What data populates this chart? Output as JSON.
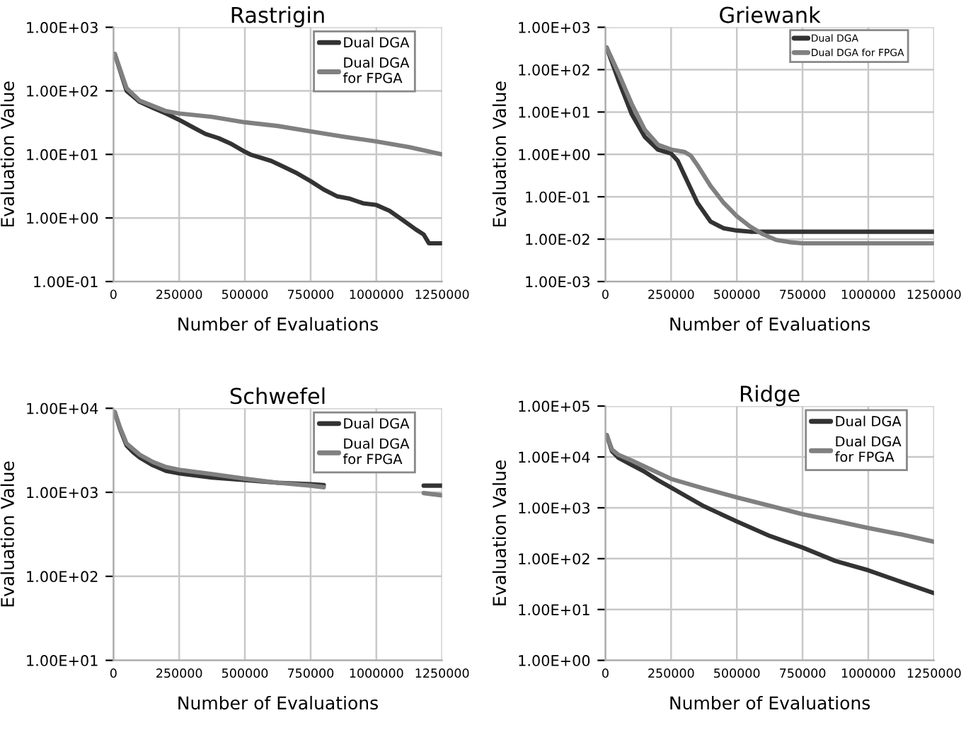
{
  "chart_data": [
    {
      "type": "line",
      "title": "Rastrigin",
      "xlabel": "Number of Evaluations",
      "ylabel": "Evaluation Value",
      "log": "y",
      "grid": true,
      "legend": "top right",
      "xlim": [
        0,
        1250000
      ],
      "xticks": [
        0,
        250000,
        500000,
        750000,
        1000000,
        1250000
      ],
      "ylim": [
        0.1,
        1000
      ],
      "yticks": [
        {
          "value": 0.1,
          "label": "1.00E-01"
        },
        {
          "value": 1,
          "label": "1.00E+00"
        },
        {
          "value": 10,
          "label": "1.00E+01"
        },
        {
          "value": 100,
          "label": "1.00E+02"
        },
        {
          "value": 1000,
          "label": "1.00E+03"
        }
      ],
      "series": [
        {
          "name": "Dual DGA",
          "color": "#333333",
          "x": [
            5000,
            50000,
            100000,
            150000,
            200000,
            250000,
            300000,
            350000,
            400000,
            450000,
            500000,
            520000,
            600000,
            650000,
            700000,
            750000,
            800000,
            850000,
            900000,
            950000,
            1000000,
            1050000,
            1100000,
            1150000,
            1180000,
            1200000,
            1250000
          ],
          "values": [
            380,
            100,
            67,
            54,
            44,
            35,
            27,
            21,
            18,
            14.5,
            11,
            10,
            7.9,
            6.3,
            5,
            3.8,
            2.8,
            2.2,
            2.0,
            1.7,
            1.6,
            1.3,
            0.93,
            0.66,
            0.55,
            0.4,
            0.4
          ]
        },
        {
          "name": "Dual DGA\nfor FPGA",
          "color": "#808080",
          "x": [
            5000,
            50000,
            100000,
            200000,
            250000,
            375000,
            500000,
            625000,
            750000,
            875000,
            1000000,
            1125000,
            1250000
          ],
          "values": [
            380,
            110,
            70,
            48,
            44,
            39,
            32,
            28,
            23,
            19,
            16,
            13,
            10
          ]
        }
      ]
    },
    {
      "type": "line",
      "title": "Griewank",
      "xlabel": "Number of Evaluations",
      "ylabel": "Evaluation Value",
      "log": "y",
      "grid": true,
      "legend": "top right",
      "xlim": [
        0,
        1250000
      ],
      "xticks": [
        0,
        250000,
        500000,
        750000,
        1000000,
        1250000
      ],
      "ylim": [
        0.001,
        1000
      ],
      "yticks": [
        {
          "value": 0.001,
          "label": "1.00E-03"
        },
        {
          "value": 0.01,
          "label": "1.00E-02"
        },
        {
          "value": 0.1,
          "label": "1.00E-01"
        },
        {
          "value": 1,
          "label": "1.00E+00"
        },
        {
          "value": 10,
          "label": "1.00E+01"
        },
        {
          "value": 100,
          "label": "1.00E+02"
        },
        {
          "value": 1000,
          "label": "1.00E+03"
        }
      ],
      "series": [
        {
          "name": "Dual DGA",
          "color": "#333333",
          "x": [
            5000,
            50000,
            100000,
            150000,
            200000,
            250000,
            275000,
            300000,
            350000,
            400000,
            450000,
            500000,
            550000,
            1250000
          ],
          "values": [
            330,
            56,
            9,
            2.6,
            1.3,
            1.05,
            0.71,
            0.33,
            0.072,
            0.026,
            0.018,
            0.016,
            0.015,
            0.015
          ]
        },
        {
          "name": "Dual DGA for FPGA",
          "color": "#808080",
          "x": [
            5000,
            50000,
            100000,
            150000,
            200000,
            250000,
            300000,
            325000,
            350000,
            400000,
            450000,
            500000,
            550000,
            600000,
            650000,
            700000,
            750000,
            1250000
          ],
          "values": [
            330,
            82,
            15.6,
            3.8,
            1.7,
            1.3,
            1.15,
            0.93,
            0.56,
            0.18,
            0.072,
            0.035,
            0.02,
            0.013,
            0.0096,
            0.0085,
            0.008,
            0.008
          ]
        }
      ]
    },
    {
      "type": "line",
      "title": "Schwefel",
      "xlabel": "Number of Evaluations",
      "ylabel": "Evaluation Value",
      "log": "y",
      "grid": true,
      "legend": "top right",
      "xlim": [
        0,
        1250000
      ],
      "xticks": [
        0,
        250000,
        500000,
        750000,
        1000000,
        1250000
      ],
      "ylim": [
        10,
        10000
      ],
      "yticks": [
        {
          "value": 10,
          "label": "1.00E+01"
        },
        {
          "value": 100,
          "label": "1.00E+02"
        },
        {
          "value": 1000,
          "label": "1.00E+03"
        },
        {
          "value": 10000,
          "label": "1.00E+04"
        }
      ],
      "series": [
        {
          "name": "Dual DGA",
          "color": "#333333",
          "x": [
            5000,
            25000,
            50000,
            75000,
            100000,
            150000,
            200000,
            250000,
            375000,
            500000,
            625000,
            750000,
            800000,
            1000000,
            1180000,
            1250000
          ],
          "values": [
            9000,
            5700,
            3600,
            3000,
            2600,
            2100,
            1800,
            1680,
            1500,
            1400,
            1300,
            1250,
            1220,
            null,
            1200,
            1200
          ]
        },
        {
          "name": "Dual DGA\nfor FPGA",
          "color": "#808080",
          "x": [
            5000,
            25000,
            50000,
            100000,
            150000,
            200000,
            250000,
            375000,
            500000,
            625000,
            750000,
            800000,
            1000000,
            1180000,
            1250000
          ],
          "values": [
            9000,
            5900,
            3800,
            2800,
            2300,
            2000,
            1850,
            1650,
            1450,
            1300,
            1200,
            1150,
            null,
            980,
            920
          ]
        }
      ]
    },
    {
      "type": "line",
      "title": "Ridge",
      "xlabel": "Number of Evaluations",
      "ylabel": "Evaluation Value",
      "log": "y",
      "grid": true,
      "legend": "top right",
      "xlim": [
        0,
        1250000
      ],
      "xticks": [
        0,
        250000,
        500000,
        750000,
        1000000,
        1250000
      ],
      "ylim": [
        1,
        100000
      ],
      "yticks": [
        {
          "value": 1,
          "label": "1.00E+00"
        },
        {
          "value": 10,
          "label": "1.00E+01"
        },
        {
          "value": 100,
          "label": "1.00E+02"
        },
        {
          "value": 1000,
          "label": "1.00E+03"
        },
        {
          "value": 10000,
          "label": "1.00E+04"
        },
        {
          "value": 100000,
          "label": "1.00E+05"
        }
      ],
      "series": [
        {
          "name": "Dual DGA",
          "color": "#333333",
          "x": [
            5000,
            25000,
            50000,
            100000,
            150000,
            200000,
            250000,
            375000,
            500000,
            625000,
            750000,
            875000,
            1000000,
            1125000,
            1250000
          ],
          "values": [
            27000,
            13000,
            9600,
            7000,
            5100,
            3500,
            2500,
            1070,
            540,
            280,
            165,
            90,
            59,
            35,
            21
          ]
        },
        {
          "name": "Dual DGA\nfor FPGA",
          "color": "#808080",
          "x": [
            5000,
            25000,
            50000,
            100000,
            250000,
            375000,
            500000,
            625000,
            750000,
            875000,
            1000000,
            1125000,
            1250000
          ],
          "values": [
            27000,
            14000,
            11000,
            8500,
            3700,
            2400,
            1600,
            1100,
            750,
            550,
            400,
            300,
            215
          ]
        }
      ]
    }
  ]
}
